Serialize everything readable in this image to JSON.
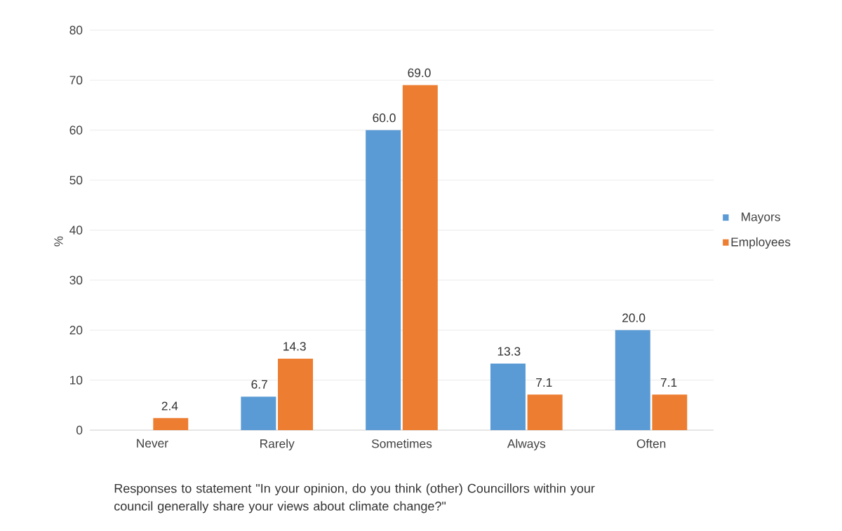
{
  "chart_data": {
    "type": "bar",
    "categories": [
      "Never",
      "Rarely",
      "Sometimes",
      "Always",
      "Often"
    ],
    "series": [
      {
        "name": "Mayors",
        "color": "#5b9bd5",
        "values": [
          null,
          6.7,
          60.0,
          13.3,
          20.0
        ],
        "value_labels": [
          null,
          "6.7",
          "60.0",
          "13.3",
          "20.0"
        ]
      },
      {
        "name": "Employees",
        "color": "#ed7d31",
        "values": [
          2.4,
          14.3,
          69.0,
          7.1,
          7.1
        ],
        "value_labels": [
          "2.4",
          "14.3",
          "69.0",
          "7.1",
          "7.1"
        ]
      }
    ],
    "ylabel": "%",
    "xlabel": "Responses to statement \"In your opinion, do you think (other) Councillors within your council  generally share your views about climate change?\"",
    "ylim": [
      0,
      80
    ],
    "yticks": [
      0,
      10,
      20,
      30,
      40,
      50,
      60,
      70,
      80
    ],
    "grid": "y",
    "legend": "right"
  }
}
